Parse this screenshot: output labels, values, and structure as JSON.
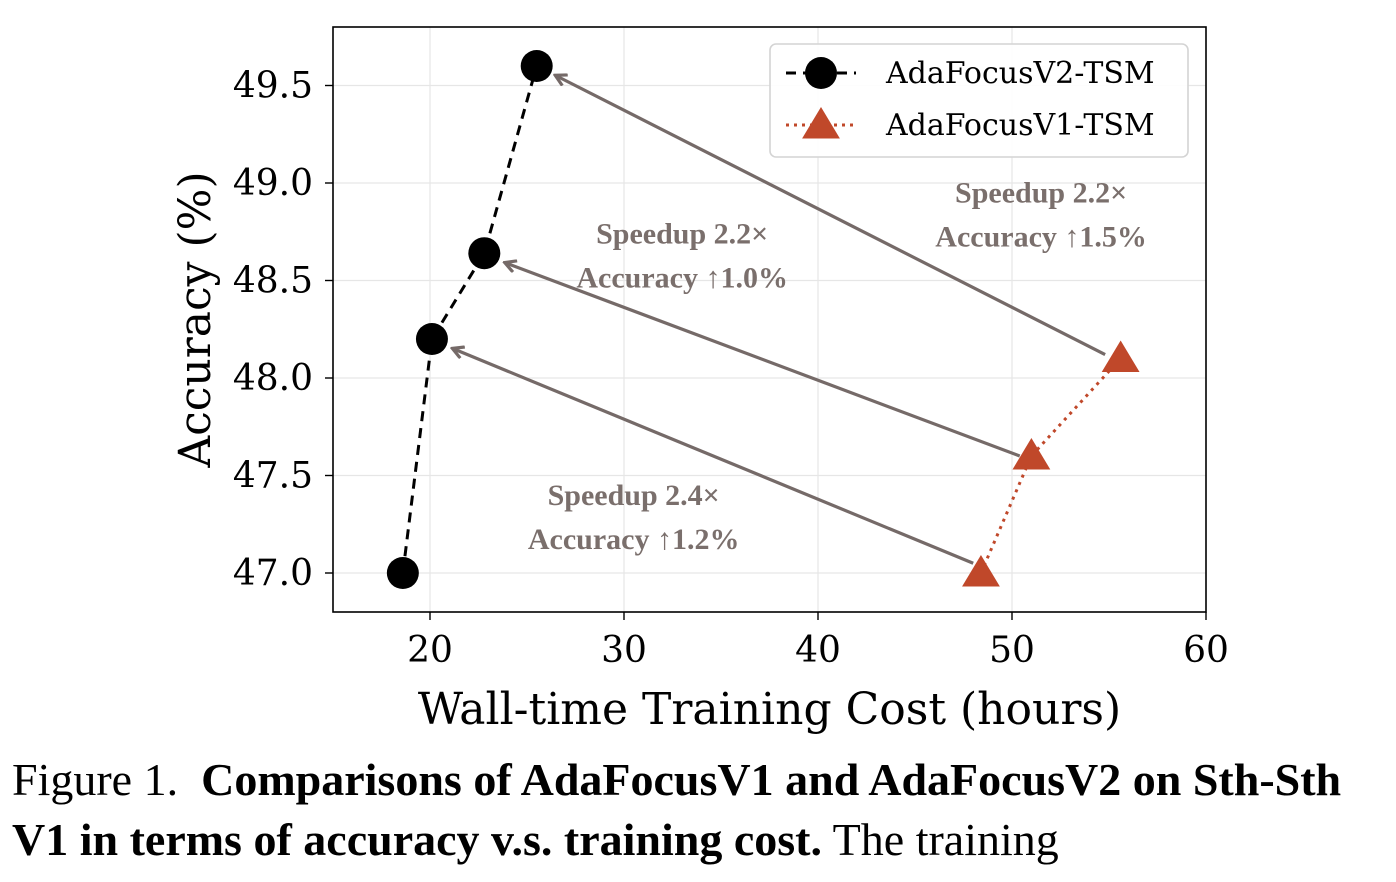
{
  "chart_data": {
    "type": "line",
    "xlabel": "Wall-time Training Cost (hours)",
    "ylabel": "Accuracy (%)",
    "xlim": [
      15,
      60
    ],
    "ylim": [
      46.8,
      49.8
    ],
    "xticks": [
      20,
      30,
      40,
      50,
      60
    ],
    "yticks": [
      47.0,
      47.5,
      48.0,
      48.5,
      49.0,
      49.5
    ],
    "xtick_labels": [
      "20",
      "30",
      "40",
      "50",
      "60"
    ],
    "ytick_labels": [
      "47.0",
      "47.5",
      "48.0",
      "48.5",
      "49.0",
      "49.5"
    ],
    "grid": true,
    "legend_position": "top-right",
    "series": [
      {
        "name": "AdaFocusV2-TSM",
        "style": "dashed",
        "marker": "circle",
        "color": "#000000",
        "x": [
          18.6,
          20.1,
          22.8,
          25.5
        ],
        "y": [
          47.0,
          48.2,
          48.64,
          49.6
        ]
      },
      {
        "name": "AdaFocusV1-TSM",
        "style": "dotted",
        "marker": "triangle",
        "color": "#c0482a",
        "x": [
          48.4,
          51.0,
          55.6
        ],
        "y": [
          47.0,
          47.6,
          48.1
        ]
      }
    ],
    "arrows": [
      {
        "from": [
          48.0,
          47.05
        ],
        "to": [
          21.2,
          48.15
        ]
      },
      {
        "from": [
          50.4,
          47.6
        ],
        "to": [
          23.9,
          48.59
        ]
      },
      {
        "from": [
          54.8,
          48.12
        ],
        "to": [
          26.5,
          49.55
        ]
      }
    ],
    "annotations": [
      {
        "lines": [
          "Speedup 2.4×",
          "Accuracy ↑1.2%"
        ],
        "x": 30.5,
        "y": 47.35
      },
      {
        "lines": [
          "Speedup 2.2×",
          "Accuracy ↑1.0%"
        ],
        "x": 33.0,
        "y": 48.69
      },
      {
        "lines": [
          "Speedup 2.2×",
          "Accuracy ↑1.5%"
        ],
        "x": 51.5,
        "y": 48.9
      }
    ],
    "colors": {
      "axis": "#000000",
      "grid": "#e6e6e6",
      "arrow": "#756a68",
      "annotation": "#7a6f6c",
      "legend_border": "#d4d4d4"
    }
  },
  "caption": {
    "label": "Figure 1.",
    "title": "Comparisons of AdaFocusV1 and AdaFocusV2 on Sth-Sth V1 in terms of accuracy v.s. training cost.",
    "text": "The training"
  }
}
